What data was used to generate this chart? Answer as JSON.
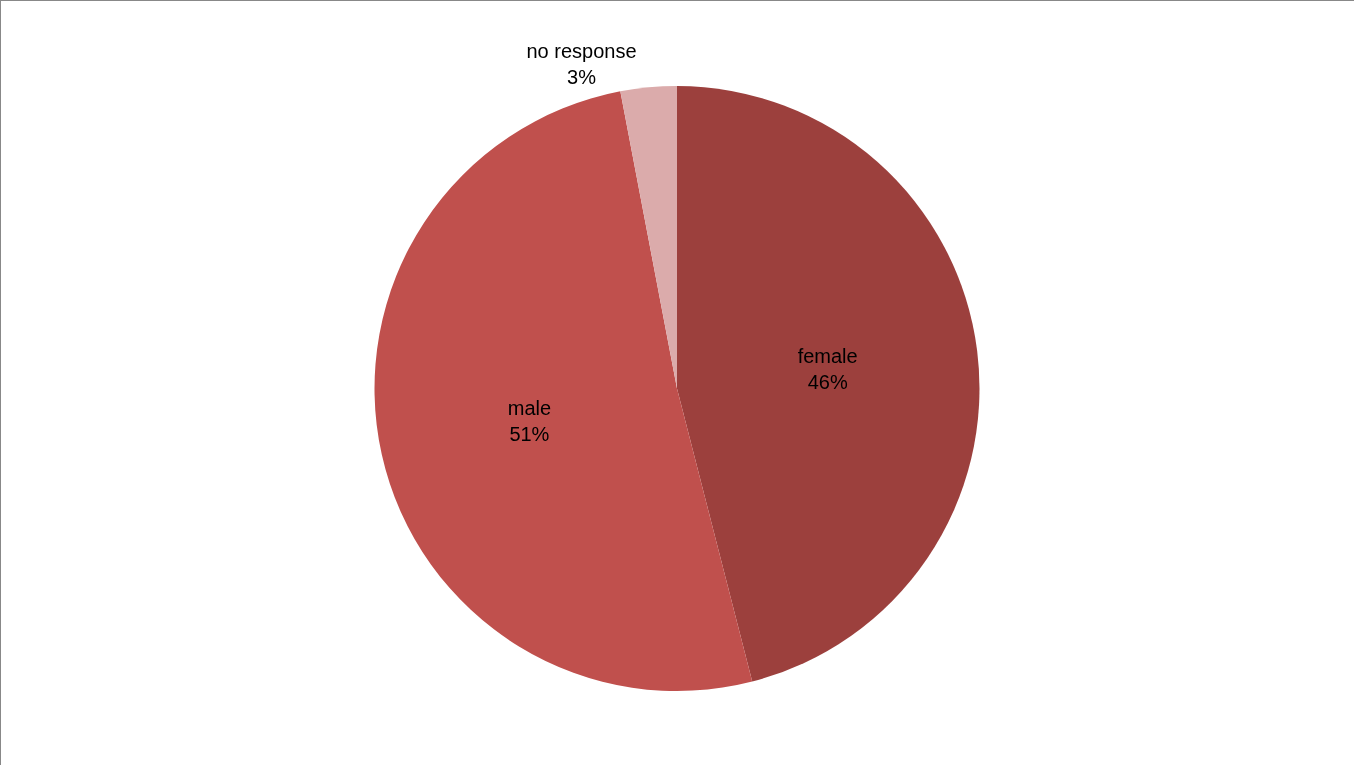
{
  "chart_data": {
    "type": "pie",
    "categories": [
      "female",
      "male",
      "no response"
    ],
    "values": [
      46,
      51,
      3
    ],
    "colors": [
      "#9c403d",
      "#c0504d",
      "#dbabab"
    ],
    "value_labels": [
      "46%",
      "51%",
      "3%"
    ],
    "legend": false
  }
}
